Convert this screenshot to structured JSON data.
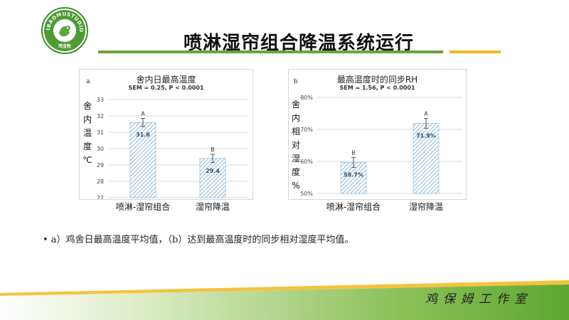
{
  "header": {
    "logo_text_top": "JIBAOMUSTUDIO",
    "logo_text_bottom": "鸡宝牧",
    "title": "喷淋湿帘组合降温系统运行"
  },
  "colors": {
    "accent_green": "#6aa534",
    "accent_gold": "#f2b81c",
    "bar_stripe": "#7fb2da"
  },
  "chart_data": [
    {
      "panel": "a",
      "type": "bar",
      "title": "舍内日最高温度",
      "subtitle": "SEM = 0.25, P < 0.0001",
      "ylabel": "舍内温度℃",
      "ylabel_chars": [
        "舍",
        "内",
        "温",
        "度",
        "℃"
      ],
      "categories": [
        "喷淋-湿帘组合",
        "湿帘降温"
      ],
      "values": [
        31.6,
        29.4
      ],
      "value_labels": [
        "31.6",
        "29.4"
      ],
      "errors": [
        0.25,
        0.25
      ],
      "significance": [
        "A",
        "B"
      ],
      "yticks": [
        "27",
        "28",
        "29",
        "30",
        "31",
        "32",
        "33"
      ],
      "ylim": [
        27,
        33
      ],
      "grid": true
    },
    {
      "panel": "b",
      "type": "bar",
      "title": "最高温度时的同步RH",
      "subtitle": "SEM = 1.56, P < 0.0001",
      "ylabel": "舍内相对湿度%",
      "ylabel_chars": [
        "舍",
        "内",
        "相",
        "对",
        "湿",
        "度",
        "%"
      ],
      "categories": [
        "喷淋-湿帘组合",
        "湿帘降温"
      ],
      "values": [
        59.7,
        71.9
      ],
      "value_labels": [
        "59.7%",
        "71.9%"
      ],
      "errors": [
        1.56,
        1.56
      ],
      "significance": [
        "B",
        "A"
      ],
      "yticks": [
        "50%",
        "60%",
        "70%",
        "80%"
      ],
      "ylim": [
        50,
        80
      ],
      "grid": true
    }
  ],
  "caption": "• a）鸡舍日最高温度平均值，（b）达到最高温度时的同步相对湿度平均值。",
  "footer": {
    "slogan": "鸡保姆工作室"
  }
}
